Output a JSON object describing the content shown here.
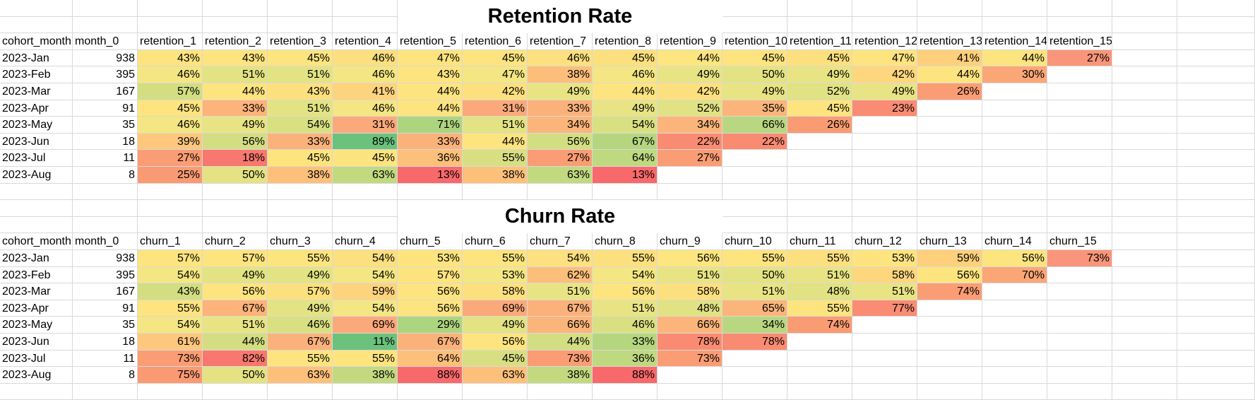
{
  "sections": [
    {
      "title": "Retention Rate",
      "headers": [
        "cohort_month",
        "month_0",
        "retention_1",
        "retention_2",
        "retention_3",
        "retention_4",
        "retention_5",
        "retention_6",
        "retention_7",
        "retention_8",
        "retention_9",
        "retention_10",
        "retention_11",
        "retention_12",
        "retention_13",
        "retention_14",
        "retention_15"
      ],
      "rows": [
        {
          "cohort": "2023-Jan",
          "month_0": "938",
          "values": [
            "43%",
            "43%",
            "45%",
            "46%",
            "47%",
            "45%",
            "46%",
            "45%",
            "44%",
            "45%",
            "45%",
            "47%",
            "41%",
            "44%",
            "27%"
          ],
          "colors": [
            "#fde47f",
            "#fde47f",
            "#fce57f",
            "#fcdf7e",
            "#fde47f",
            "#fde47f",
            "#fde07f",
            "#fde07e",
            "#fde67f",
            "#fde47f",
            "#fde07e",
            "#fde47f",
            "#fed07c",
            "#fce47f",
            "#f9957a"
          ]
        },
        {
          "cohort": "2023-Feb",
          "month_0": "395",
          "values": [
            "46%",
            "51%",
            "51%",
            "46%",
            "43%",
            "47%",
            "38%",
            "46%",
            "49%",
            "50%",
            "49%",
            "42%",
            "44%",
            "30%"
          ],
          "colors": [
            "#f4e682",
            "#e3e383",
            "#e3e383",
            "#f4e682",
            "#fde47f",
            "#f4e682",
            "#fcbf7b",
            "#f4e682",
            "#e8e483",
            "#e3e383",
            "#e8e483",
            "#fed67d",
            "#fde47f",
            "#fba676"
          ]
        },
        {
          "cohort": "2023-Mar",
          "month_0": "167",
          "values": [
            "57%",
            "44%",
            "43%",
            "41%",
            "44%",
            "42%",
            "49%",
            "44%",
            "42%",
            "49%",
            "52%",
            "49%",
            "26%"
          ],
          "colors": [
            "#d2de81",
            "#fde47f",
            "#fde07e",
            "#fdd37d",
            "#fde47f",
            "#fde07e",
            "#e8e483",
            "#fde47f",
            "#fde07e",
            "#e8e483",
            "#e1e283",
            "#e8e483",
            "#fa9d74"
          ]
        },
        {
          "cohort": "2023-Apr",
          "month_0": "91",
          "values": [
            "45%",
            "33%",
            "51%",
            "46%",
            "44%",
            "31%",
            "33%",
            "49%",
            "52%",
            "35%",
            "45%",
            "23%"
          ],
          "colors": [
            "#fde47f",
            "#fdb379",
            "#e3e383",
            "#f4e682",
            "#fde47f",
            "#fba97b",
            "#fbb27a",
            "#e8e483",
            "#e1e283",
            "#fbb57b",
            "#fde47f",
            "#f98c73"
          ]
        },
        {
          "cohort": "2023-May",
          "month_0": "35",
          "values": [
            "46%",
            "49%",
            "54%",
            "31%",
            "71%",
            "51%",
            "34%",
            "54%",
            "34%",
            "66%",
            "26%"
          ],
          "colors": [
            "#f4e682",
            "#e8e483",
            "#d9e081",
            "#fba97b",
            "#add47f",
            "#e3e383",
            "#fbb57b",
            "#d9e081",
            "#fbb57b",
            "#b8d780",
            "#fa9c73"
          ]
        },
        {
          "cohort": "2023-Jun",
          "month_0": "18",
          "values": [
            "39%",
            "56%",
            "33%",
            "89%",
            "33%",
            "44%",
            "56%",
            "67%",
            "22%",
            "22%"
          ],
          "colors": [
            "#fdc77d",
            "#d3de82",
            "#fbb27a",
            "#6bc27c",
            "#fbb27a",
            "#fde47f",
            "#d3de82",
            "#b5d67f",
            "#f98b72",
            "#f98b72"
          ]
        },
        {
          "cohort": "2023-Jul",
          "month_0": "11",
          "values": [
            "27%",
            "18%",
            "45%",
            "45%",
            "36%",
            "55%",
            "27%",
            "64%",
            "27%"
          ],
          "colors": [
            "#fa9d74",
            "#f8776e",
            "#fde47f",
            "#fde47f",
            "#fdc07b",
            "#d8df82",
            "#fa9d74",
            "#bfd981",
            "#fa9d74"
          ]
        },
        {
          "cohort": "2023-Aug",
          "month_0": "8",
          "values": [
            "25%",
            "50%",
            "38%",
            "63%",
            "13%",
            "38%",
            "63%",
            "13%"
          ],
          "colors": [
            "#fa9a73",
            "#e4e283",
            "#fdc07b",
            "#c2d980",
            "#f8696b",
            "#fdc07b",
            "#c2d980",
            "#f8696b"
          ]
        }
      ]
    },
    {
      "title": "Churn Rate",
      "headers": [
        "cohort_month",
        "month_0",
        "churn_1",
        "churn_2",
        "churn_3",
        "churn_4",
        "churn_5",
        "churn_6",
        "churn_7",
        "churn_8",
        "churn_9",
        "churn_10",
        "churn_11",
        "churn_12",
        "churn_13",
        "churn_14",
        "churn_15"
      ],
      "rows": [
        {
          "cohort": "2023-Jan",
          "month_0": "938",
          "values": [
            "57%",
            "57%",
            "55%",
            "54%",
            "53%",
            "55%",
            "54%",
            "55%",
            "56%",
            "55%",
            "55%",
            "53%",
            "59%",
            "56%",
            "73%"
          ],
          "colors": [
            "#fde47f",
            "#fde47f",
            "#fce57f",
            "#fcdf7e",
            "#fde47f",
            "#fde47f",
            "#fde07f",
            "#fde07e",
            "#fde67f",
            "#fde47f",
            "#fde07e",
            "#fde47f",
            "#fed07c",
            "#fce47f",
            "#f9957a"
          ]
        },
        {
          "cohort": "2023-Feb",
          "month_0": "395",
          "values": [
            "54%",
            "49%",
            "49%",
            "54%",
            "57%",
            "53%",
            "62%",
            "54%",
            "51%",
            "50%",
            "51%",
            "58%",
            "56%",
            "70%"
          ],
          "colors": [
            "#f4e682",
            "#e3e383",
            "#e3e383",
            "#f4e682",
            "#fde47f",
            "#f4e682",
            "#fcbf7b",
            "#f4e682",
            "#e8e483",
            "#e3e383",
            "#e8e483",
            "#fed67d",
            "#fde47f",
            "#fba676"
          ]
        },
        {
          "cohort": "2023-Mar",
          "month_0": "167",
          "values": [
            "43%",
            "56%",
            "57%",
            "59%",
            "56%",
            "58%",
            "51%",
            "56%",
            "58%",
            "51%",
            "48%",
            "51%",
            "74%"
          ],
          "colors": [
            "#d2de81",
            "#fde47f",
            "#fde07e",
            "#fdd37d",
            "#fde47f",
            "#fde07e",
            "#e8e483",
            "#fde47f",
            "#fde07e",
            "#e8e483",
            "#e1e283",
            "#e8e483",
            "#fa9d74"
          ]
        },
        {
          "cohort": "2023-Apr",
          "month_0": "91",
          "values": [
            "55%",
            "67%",
            "49%",
            "54%",
            "56%",
            "69%",
            "67%",
            "51%",
            "48%",
            "65%",
            "55%",
            "77%"
          ],
          "colors": [
            "#fde47f",
            "#fdb379",
            "#e3e383",
            "#f4e682",
            "#fde47f",
            "#fba97b",
            "#fbb27a",
            "#e8e483",
            "#e1e283",
            "#fbb57b",
            "#fde47f",
            "#f98c73"
          ]
        },
        {
          "cohort": "2023-May",
          "month_0": "35",
          "values": [
            "54%",
            "51%",
            "46%",
            "69%",
            "29%",
            "49%",
            "66%",
            "46%",
            "66%",
            "34%",
            "74%"
          ],
          "colors": [
            "#f4e682",
            "#e8e483",
            "#d9e081",
            "#fba97b",
            "#add47f",
            "#e3e383",
            "#fbb57b",
            "#d9e081",
            "#fbb57b",
            "#b8d780",
            "#fa9c73"
          ]
        },
        {
          "cohort": "2023-Jun",
          "month_0": "18",
          "values": [
            "61%",
            "44%",
            "67%",
            "11%",
            "67%",
            "56%",
            "44%",
            "33%",
            "78%",
            "78%"
          ],
          "colors": [
            "#fdc77d",
            "#d3de82",
            "#fbb27a",
            "#6bc27c",
            "#fbb27a",
            "#fde47f",
            "#d3de82",
            "#b5d67f",
            "#f98b72",
            "#f98b72"
          ]
        },
        {
          "cohort": "2023-Jul",
          "month_0": "11",
          "values": [
            "73%",
            "82%",
            "55%",
            "55%",
            "64%",
            "45%",
            "73%",
            "36%",
            "73%"
          ],
          "colors": [
            "#fa9d74",
            "#f8776e",
            "#fde47f",
            "#fde47f",
            "#fdc07b",
            "#d8df82",
            "#fa9d74",
            "#bfd981",
            "#fa9d74"
          ]
        },
        {
          "cohort": "2023-Aug",
          "month_0": "8",
          "values": [
            "75%",
            "50%",
            "63%",
            "38%",
            "88%",
            "63%",
            "38%",
            "88%"
          ],
          "colors": [
            "#fa9a73",
            "#e4e283",
            "#fdc07b",
            "#c2d980",
            "#f8696b",
            "#fdc07b",
            "#c2d980",
            "#f8696b"
          ]
        }
      ]
    }
  ]
}
